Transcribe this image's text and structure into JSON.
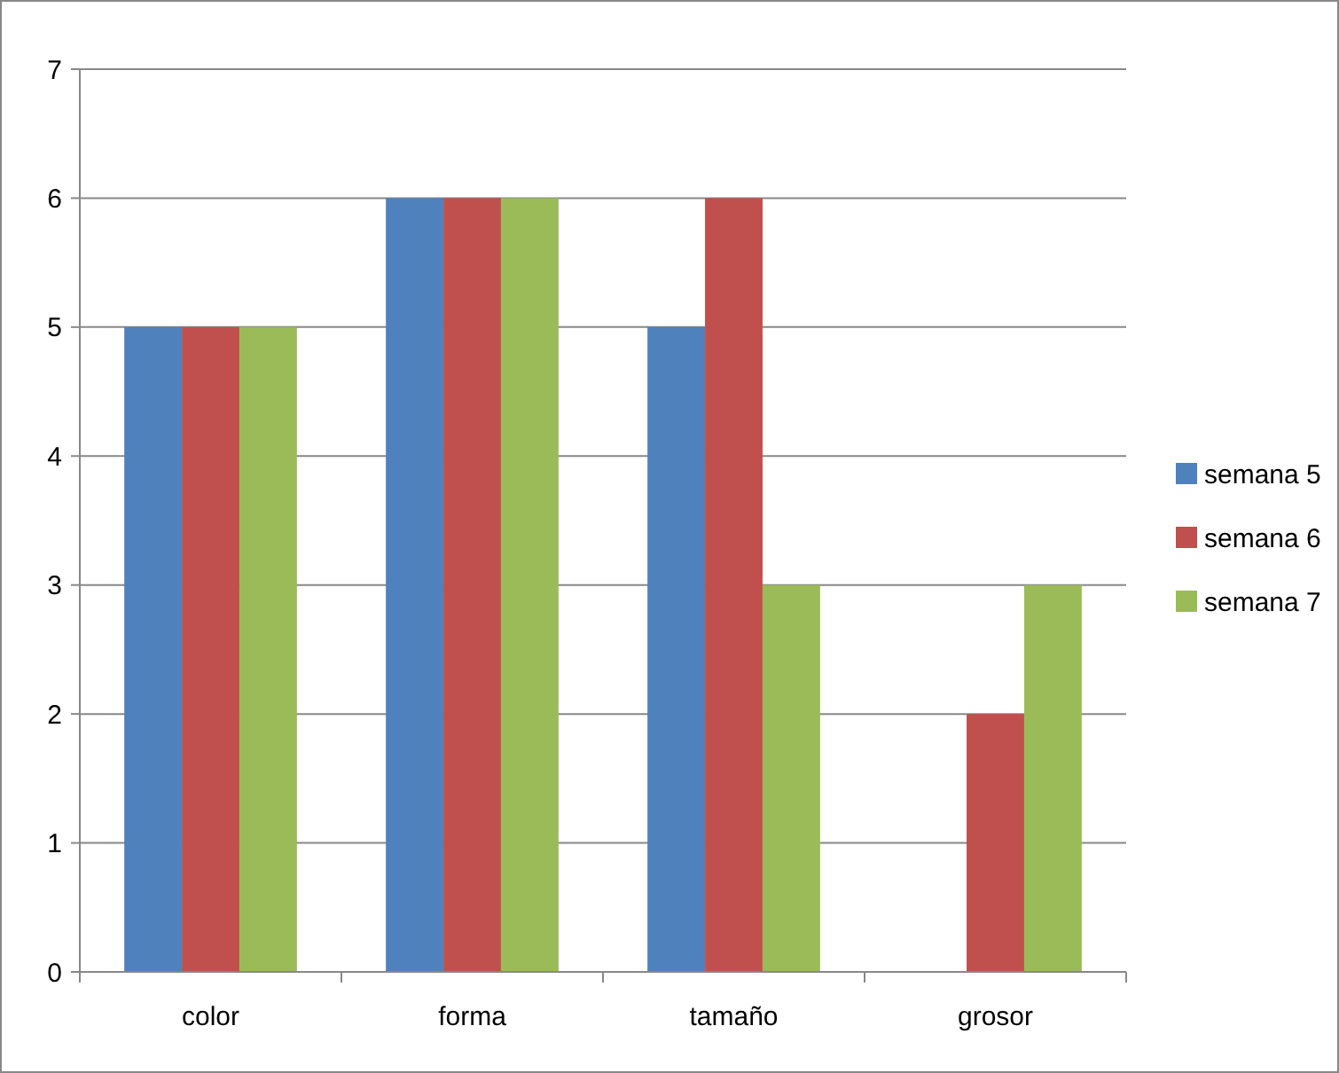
{
  "chart_data": {
    "type": "bar",
    "categories": [
      "color",
      "forma",
      "tamaño",
      "grosor"
    ],
    "series": [
      {
        "name": "semana 5",
        "color": "#4f81bd",
        "values": [
          5,
          6,
          5,
          0
        ]
      },
      {
        "name": "semana 6",
        "color": "#c0504d",
        "values": [
          5,
          6,
          6,
          2
        ]
      },
      {
        "name": "semana 7",
        "color": "#9bbb59",
        "values": [
          5,
          6,
          3,
          3
        ]
      }
    ],
    "ylim": [
      0,
      7
    ],
    "yticks": [
      0,
      1,
      2,
      3,
      4,
      5,
      6,
      7
    ],
    "grid": "y",
    "legend": "right"
  }
}
